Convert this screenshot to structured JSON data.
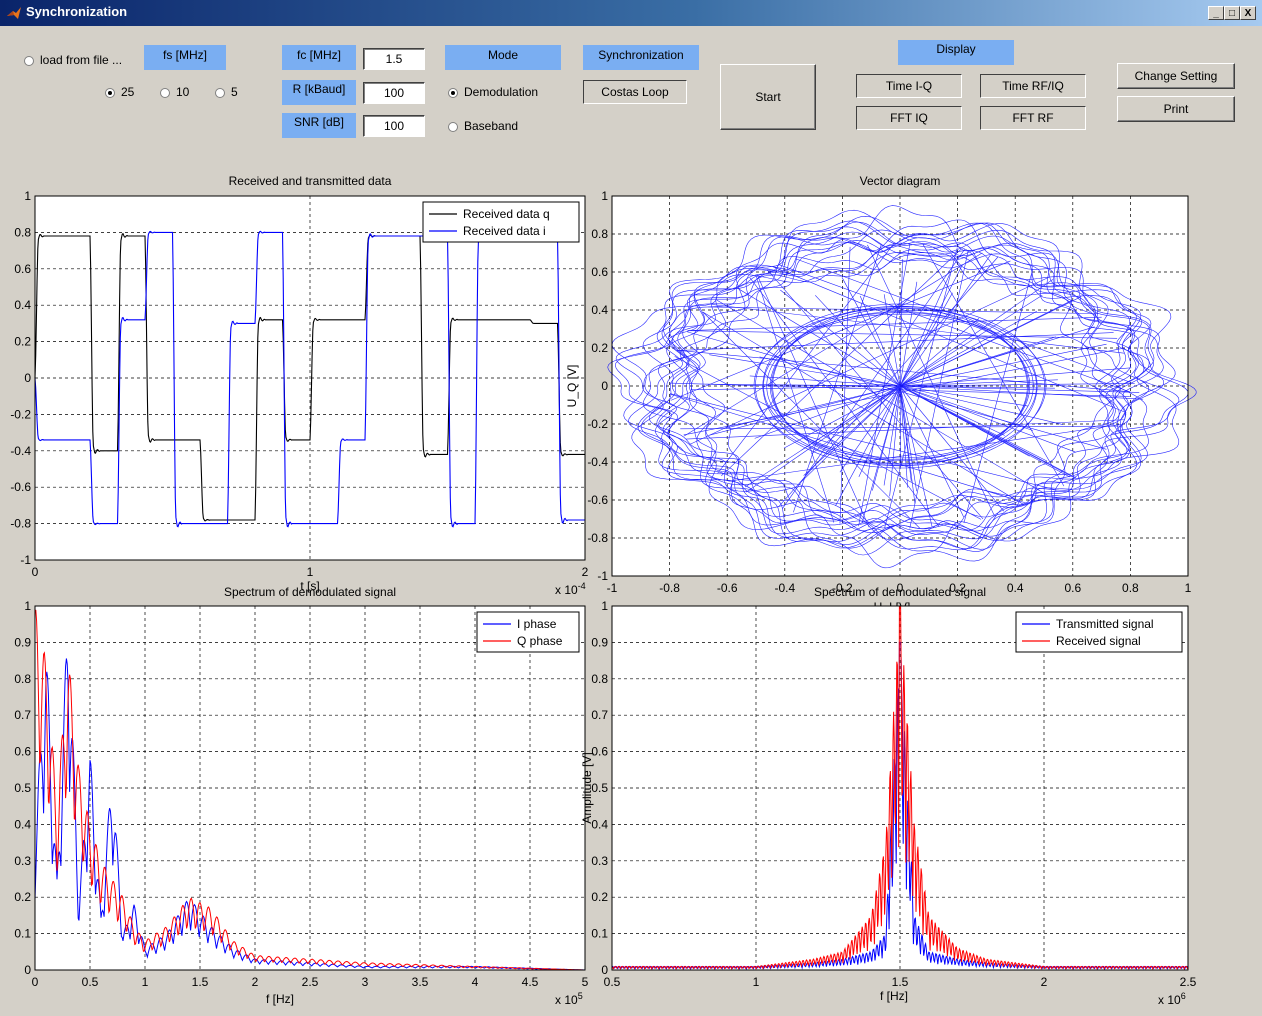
{
  "window": {
    "title": "Synchronization",
    "controls": [
      "_",
      "□",
      "X"
    ]
  },
  "controls": {
    "load_from_file": "load from file ...",
    "fs_label": "fs [MHz]",
    "fs_options": [
      "25",
      "10",
      "5"
    ],
    "fs_selected": "25",
    "fc_label": "fc [MHz]",
    "fc_value": "1.5",
    "r_label": "R [kBaud]",
    "r_value": "100",
    "snr_label": "SNR [dB]",
    "snr_value": "100",
    "mode_label": "Mode",
    "mode_options": [
      "Demodulation",
      "Baseband"
    ],
    "mode_selected": "Demodulation",
    "sync_label": "Synchronization",
    "sync_method": "Costas Loop",
    "start": "Start",
    "display_label": "Display",
    "display_buttons": [
      "Time I-Q",
      "Time RF/IQ",
      "FFT IQ",
      "FFT RF"
    ],
    "change_setting": "Change Setting",
    "print": "Print"
  },
  "chart_data": [
    {
      "type": "line",
      "title": "Received and transmitted data",
      "xlabel": "t [s]",
      "xlim": [
        0,
        2
      ],
      "x_multiplier": "x 10^-4",
      "ylim": [
        -1,
        1
      ],
      "xticks": [
        "0",
        "1",
        "2"
      ],
      "yticks": [
        "-1",
        "-0.8",
        "-0.6",
        "-0.4",
        "-0.2",
        "0",
        "0.2",
        "0.4",
        "0.6",
        "0.8",
        "1"
      ],
      "grid": true,
      "legend": "top-right",
      "series": [
        {
          "name": "Received data q",
          "color": "#000000",
          "symbol_x": [
            0.04,
            0.14,
            0.24,
            0.34,
            0.44,
            0.54,
            0.64,
            0.74,
            0.84,
            0.94,
            1.04,
            1.14,
            1.24,
            1.34,
            1.44,
            1.54,
            1.64,
            1.74,
            1.84,
            1.94
          ],
          "symbol_values": [
            0.78,
            0.78,
            -0.4,
            0.78,
            -0.34,
            -0.34,
            -0.78,
            -0.78,
            0.32,
            -0.34,
            0.32,
            0.32,
            0.78,
            0.78,
            -0.42,
            0.32,
            0.32,
            0.32,
            0.3,
            -0.42
          ]
        },
        {
          "name": "Received data i",
          "color": "#0000ff",
          "symbol_x": [
            0.04,
            0.14,
            0.24,
            0.34,
            0.44,
            0.54,
            0.64,
            0.74,
            0.84,
            0.94,
            1.04,
            1.14,
            1.24,
            1.34,
            1.44,
            1.54,
            1.64,
            1.74,
            1.84,
            1.94
          ],
          "symbol_values": [
            -0.34,
            -0.34,
            -0.8,
            0.32,
            0.8,
            -0.8,
            -0.8,
            0.3,
            0.8,
            -0.8,
            -0.8,
            -0.34,
            0.78,
            0.78,
            0.78,
            -0.8,
            0.78,
            0.78,
            0.78,
            -0.78
          ]
        }
      ]
    },
    {
      "type": "scatter",
      "title": "Vector diagram",
      "xlabel": "U_I [V]",
      "ylabel": "U_Q [V]",
      "xlim": [
        -1,
        1
      ],
      "ylim": [
        -1,
        1
      ],
      "xticks": [
        "-1",
        "-0.8",
        "-0.6",
        "-0.4",
        "-0.2",
        "0",
        "0.2",
        "0.4",
        "0.6",
        "0.8",
        "1"
      ],
      "yticks": [
        "-1",
        "-0.8",
        "-0.6",
        "-0.4",
        "-0.2",
        "0",
        "0.2",
        "0.4",
        "0.6",
        "0.8",
        "1"
      ],
      "grid": true,
      "series": [
        {
          "name": "",
          "color": "#0000ff",
          "outer_radius_x": 0.95,
          "outer_radius_y": 0.88,
          "inner_radius": 0.45,
          "lobes": 8
        }
      ]
    },
    {
      "type": "line",
      "title": "Spectrum of demodulated signal",
      "xlabel": "f [Hz]",
      "xlim": [
        0,
        5
      ],
      "x_multiplier": "x 10^5",
      "ylim": [
        0,
        1
      ],
      "xticks": [
        "0",
        "0.5",
        "1",
        "1.5",
        "2",
        "2.5",
        "3",
        "3.5",
        "4",
        "4.5",
        "5"
      ],
      "yticks": [
        "0",
        "0.1",
        "0.2",
        "0.3",
        "0.4",
        "0.5",
        "0.6",
        "0.7",
        "0.8",
        "0.9",
        "1"
      ],
      "grid": true,
      "legend": "top-right",
      "series": [
        {
          "name": "I phase",
          "color": "#0000ff",
          "x": [
            0,
            0.1,
            0.2,
            0.3,
            0.4,
            0.5,
            0.6,
            0.7,
            0.8,
            0.9,
            1.0,
            1.2,
            1.4,
            1.6,
            1.8,
            2.0,
            2.5,
            3.0,
            4.0,
            5.0
          ],
          "values": [
            0.35,
            0.9,
            0.25,
            1.0,
            0.2,
            0.6,
            0.15,
            0.55,
            0.1,
            0.18,
            0.06,
            0.1,
            0.2,
            0.12,
            0.06,
            0.03,
            0.02,
            0.01,
            0.01,
            0.0
          ]
        },
        {
          "name": "Q phase",
          "color": "#ff0000",
          "x": [
            0,
            0.1,
            0.2,
            0.3,
            0.4,
            0.5,
            0.6,
            0.7,
            0.8,
            0.9,
            1.0,
            1.2,
            1.4,
            1.6,
            1.8,
            2.0,
            2.5,
            3.0,
            4.0,
            5.0
          ],
          "values": [
            1.0,
            0.85,
            0.45,
            0.87,
            0.55,
            0.4,
            0.3,
            0.25,
            0.2,
            0.12,
            0.08,
            0.12,
            0.2,
            0.17,
            0.08,
            0.04,
            0.03,
            0.02,
            0.01,
            0.0
          ]
        }
      ]
    },
    {
      "type": "line",
      "title": "Spectrum of demodulated signal",
      "xlabel": "f [Hz]",
      "ylabel": "Amplitude [V]",
      "xlim": [
        0.5,
        2.5
      ],
      "x_multiplier": "x 10^6",
      "ylim": [
        0,
        1
      ],
      "xticks": [
        "0.5",
        "1",
        "1.5",
        "2",
        "2.5"
      ],
      "yticks": [
        "0",
        "0.1",
        "0.2",
        "0.3",
        "0.4",
        "0.5",
        "0.6",
        "0.7",
        "0.8",
        "0.9",
        "1"
      ],
      "grid": true,
      "legend": "top-right",
      "series": [
        {
          "name": "Transmitted signal",
          "color": "#0000ff",
          "x": [
            0.5,
            1.0,
            1.2,
            1.3,
            1.4,
            1.45,
            1.5,
            1.55,
            1.6,
            1.7,
            1.8,
            2.0,
            2.5
          ],
          "values": [
            0.01,
            0.01,
            0.02,
            0.03,
            0.05,
            0.1,
            0.9,
            0.15,
            0.05,
            0.03,
            0.02,
            0.01,
            0.01
          ]
        },
        {
          "name": "Received signal",
          "color": "#ff0000",
          "x": [
            0.5,
            1.0,
            1.2,
            1.3,
            1.4,
            1.45,
            1.5,
            1.55,
            1.6,
            1.7,
            1.8,
            2.0,
            2.5
          ],
          "values": [
            0.01,
            0.01,
            0.03,
            0.05,
            0.15,
            0.35,
            1.0,
            0.4,
            0.15,
            0.06,
            0.03,
            0.01,
            0.01
          ]
        }
      ]
    }
  ]
}
